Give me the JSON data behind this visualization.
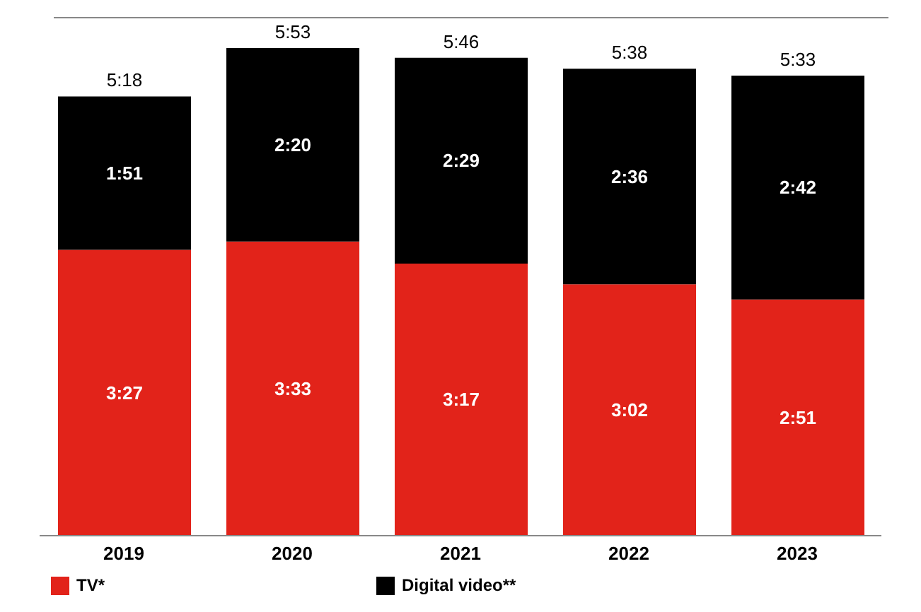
{
  "chart_data": {
    "type": "bar",
    "stacked": true,
    "categories": [
      "2019",
      "2020",
      "2021",
      "2022",
      "2023"
    ],
    "series": [
      {
        "name": "TV*",
        "color": "#e2231a",
        "values": [
          207,
          213,
          197,
          182,
          171
        ],
        "value_labels": [
          "3:27",
          "3:33",
          "3:17",
          "3:02",
          "2:51"
        ]
      },
      {
        "name": "Digital video**",
        "color": "#000000",
        "values": [
          111,
          140,
          149,
          156,
          162
        ],
        "value_labels": [
          "1:51",
          "2:20",
          "2:29",
          "2:36",
          "2:42"
        ]
      }
    ],
    "totals": [
      "5:18",
      "5:53",
      "5:46",
      "5:38",
      "5:33"
    ],
    "legend": "bottom left"
  }
}
